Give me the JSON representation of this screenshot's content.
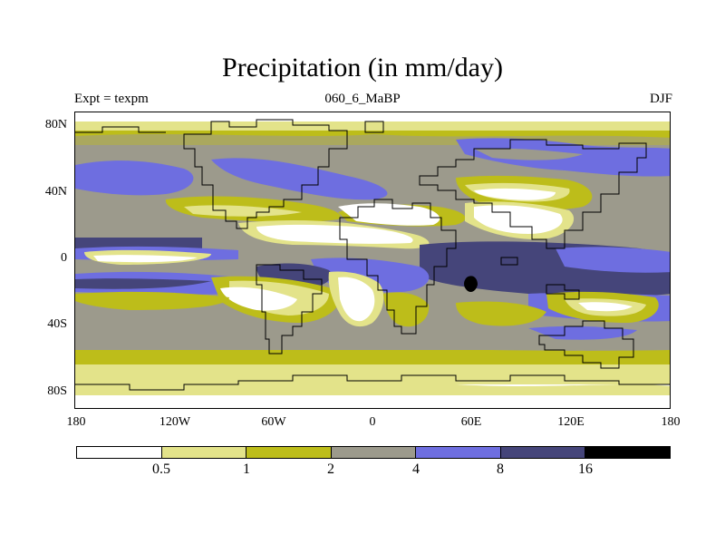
{
  "title": "Precipitation (in mm/day)",
  "experiment_label": "Expt = texpm",
  "run_label": "060_6_MaBP",
  "season_label": "DJF",
  "y_axis_labels": [
    "80N",
    "40N",
    "0",
    "40S",
    "80S"
  ],
  "x_axis_labels": [
    "180",
    "120W",
    "60W",
    "0",
    "60E",
    "120E",
    "180"
  ],
  "colorbar": {
    "colors": [
      "#ffffff",
      "#e3e38a",
      "#bdbd1a",
      "#9c9a8c",
      "#6e6ee0",
      "#45457a",
      "#000000"
    ],
    "labels": [
      "0.5",
      "1",
      "2",
      "4",
      "8",
      "16"
    ]
  }
}
